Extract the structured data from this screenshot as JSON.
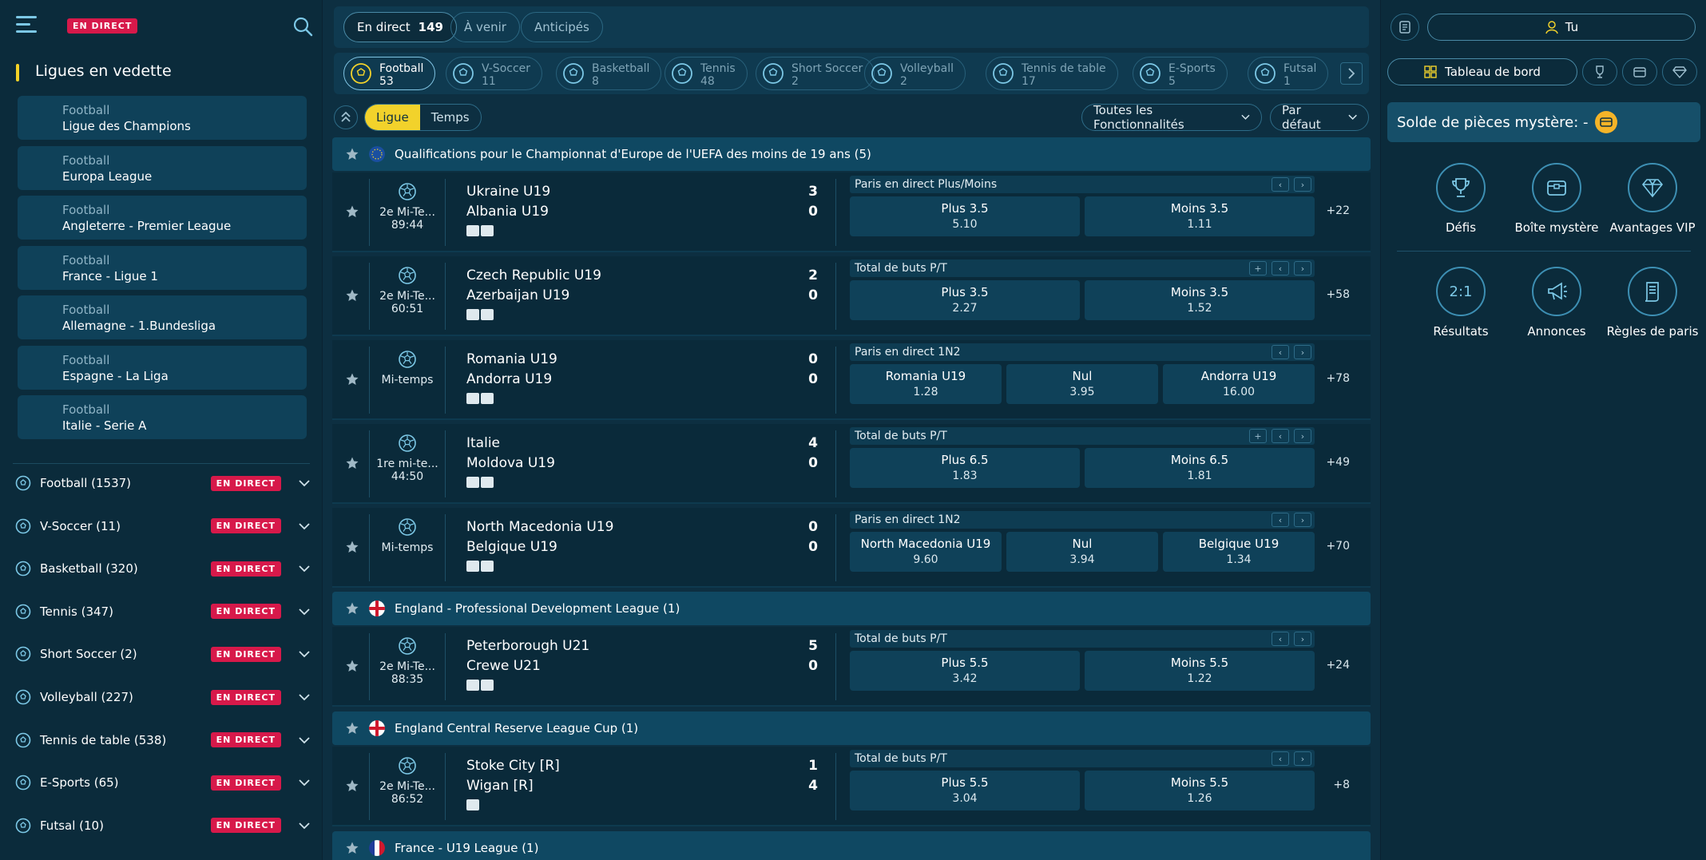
{
  "left": {
    "live_tag": "EN DIRECT",
    "featured_title": "Ligues en vedette",
    "featured": [
      {
        "sport": "Football",
        "league": "Ligue des Champions"
      },
      {
        "sport": "Football",
        "league": "Europa League"
      },
      {
        "sport": "Football",
        "league": "Angleterre - Premier League"
      },
      {
        "sport": "Football",
        "league": "France - Ligue 1"
      },
      {
        "sport": "Football",
        "league": "Allemagne - 1.Bundesliga"
      },
      {
        "sport": "Football",
        "league": "Espagne - La Liga"
      },
      {
        "sport": "Football",
        "league": "Italie - Serie A"
      }
    ],
    "sports": [
      {
        "label": "Football  (1537)",
        "icon": "soccer-ball-icon",
        "tag": "EN DIRECT"
      },
      {
        "label": "V-Soccer  (11)",
        "icon": "v-soccer-icon",
        "tag": "EN DIRECT"
      },
      {
        "label": "Basketball  (320)",
        "icon": "basketball-icon",
        "tag": "EN DIRECT"
      },
      {
        "label": "Tennis  (347)",
        "icon": "tennis-ball-icon",
        "tag": "EN DIRECT"
      },
      {
        "label": "Short Soccer  (2)",
        "icon": "short-soccer-icon",
        "tag": "EN DIRECT"
      },
      {
        "label": "Volleyball  (227)",
        "icon": "volleyball-icon",
        "tag": "EN DIRECT"
      },
      {
        "label": "Tennis de table  (538)",
        "icon": "table-tennis-icon",
        "tag": "EN DIRECT"
      },
      {
        "label": "E-Sports  (65)",
        "icon": "gamepad-icon",
        "tag": "EN DIRECT"
      },
      {
        "label": "Futsal  (10)",
        "icon": "futsal-icon",
        "tag": "EN DIRECT"
      }
    ]
  },
  "top_tabs": {
    "live_label": "En direct",
    "live_count": "149",
    "upcoming_label": "À venir",
    "anticipated_label": "Anticipés"
  },
  "sport_tabs": [
    {
      "name": "Football",
      "count": "53"
    },
    {
      "name": "V-Soccer",
      "count": "11"
    },
    {
      "name": "Basketball",
      "count": "8"
    },
    {
      "name": "Tennis",
      "count": "48"
    },
    {
      "name": "Short Soccer",
      "count": "2"
    },
    {
      "name": "Volleyball",
      "count": "2"
    },
    {
      "name": "Tennis de table",
      "count": "17"
    },
    {
      "name": "E-Sports",
      "count": "5"
    },
    {
      "name": "Futsal",
      "count": "1"
    }
  ],
  "filters": {
    "league_label": "Ligue",
    "time_label": "Temps",
    "features_label": "Toutes les Fonctionnalités",
    "sort_label": "Par défaut"
  },
  "leagues": [
    {
      "name": "Qualifications pour le Championnat d'Europe de l'UEFA des moins de 19 ans (5)"
    },
    {
      "name": "England - Professional Development League (1)"
    },
    {
      "name": "England Central Reserve League Cup (1)"
    },
    {
      "name": "France - U19 League (1)"
    }
  ],
  "matches": [
    {
      "period": "2e Mi-Te...",
      "clock": "89:44",
      "home": "Ukraine U19",
      "away": "Albania U19",
      "hs": "3",
      "as": "0",
      "market": "Paris en direct Plus/Moins",
      "o1l": "Plus  3.5",
      "o1v": "5.10",
      "o2l": "Moins  3.5",
      "o2v": "1.11",
      "more": "+22"
    },
    {
      "period": "2e Mi-Te...",
      "clock": "60:51",
      "home": "Czech Republic U19",
      "away": "Azerbaijan U19",
      "hs": "2",
      "as": "0",
      "market": "Total de buts P/T",
      "o1l": "Plus  3.5",
      "o1v": "2.27",
      "o2l": "Moins  3.5",
      "o2v": "1.52",
      "more": "+58"
    },
    {
      "period": "Mi-temps",
      "clock": "",
      "home": "Romania U19",
      "away": "Andorra U19",
      "hs": "0",
      "as": "0",
      "market": "Paris en direct 1N2",
      "o1l": "Romania U19",
      "o1v": "1.28",
      "o2l": "Nul",
      "o2v": "3.95",
      "o3l": "Andorra U19",
      "o3v": "16.00",
      "more": "+78"
    },
    {
      "period": "1re mi-te...",
      "clock": "44:50",
      "home": "Italie",
      "away": "Moldova U19",
      "hs": "4",
      "as": "0",
      "market": "Total de buts P/T",
      "o1l": "Plus  6.5",
      "o1v": "1.83",
      "o2l": "Moins  6.5",
      "o2v": "1.81",
      "more": "+49"
    },
    {
      "period": "Mi-temps",
      "clock": "",
      "home": "North Macedonia U19",
      "away": "Belgique U19",
      "hs": "0",
      "as": "0",
      "market": "Paris en direct 1N2",
      "o1l": "North Macedonia U19",
      "o1v": "9.60",
      "o2l": "Nul",
      "o2v": "3.94",
      "o3l": "Belgique U19",
      "o3v": "1.34",
      "more": "+70"
    },
    {
      "period": "2e Mi-Te...",
      "clock": "88:35",
      "home": "Peterborough U21",
      "away": "Crewe U21",
      "hs": "5",
      "as": "0",
      "market": "Total de buts P/T",
      "o1l": "Plus  5.5",
      "o1v": "3.42",
      "o2l": "Moins  5.5",
      "o2v": "1.22",
      "more": "+24"
    },
    {
      "period": "2e Mi-Te...",
      "clock": "86:52",
      "home": "Stoke City [R]",
      "away": "Wigan [R]",
      "hs": "1",
      "as": "4",
      "market": "Total de buts P/T",
      "o1l": "Plus  5.5",
      "o1v": "3.04",
      "o2l": "Moins  5.5",
      "o2v": "1.26",
      "more": "+8"
    }
  ],
  "right": {
    "user_label": "Tu",
    "dashboard_label": "Tableau de bord",
    "coins_label": "Solde de pièces mystère:  -",
    "features": [
      "Défis",
      "Boîte mystère",
      "Avantages VIP",
      "Résultats",
      "Annonces",
      "Règles de paris"
    ],
    "results_glyph": "2:1"
  },
  "colors": {
    "accent": "#f2d22b",
    "live": "#d7194a",
    "bg": "#0d2f41"
  }
}
